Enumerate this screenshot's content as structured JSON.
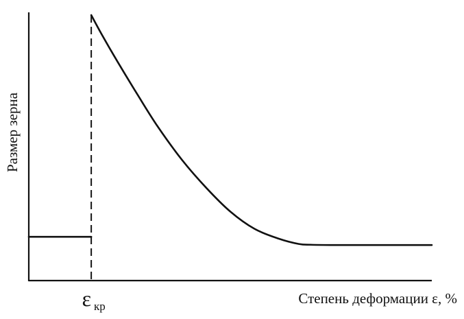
{
  "chart_data": {
    "type": "line",
    "title": "",
    "xlabel": "Степень деформации ε, %",
    "ylabel": "Размер зерна",
    "x_tick_labels": [
      {
        "symbol": "ε",
        "subscript": "кр"
      }
    ],
    "grid": false,
    "legend": "none",
    "xlim": [
      0,
      100
    ],
    "ylim": [
      0,
      100
    ],
    "critical_x": 15.5,
    "series": [
      {
        "segment": "pre-critical",
        "x": [
          0,
          15.5
        ],
        "y": [
          16.5,
          16.5
        ]
      },
      {
        "segment": "post-critical",
        "x": [
          15.5,
          18,
          22,
          27,
          32,
          38,
          44,
          50,
          56,
          62,
          67,
          70,
          75,
          85,
          100
        ],
        "y": [
          100,
          93,
          82.5,
          70,
          58,
          45.5,
          35,
          26,
          19.5,
          15.8,
          13.8,
          13.5,
          13.4,
          13.4,
          13.4
        ]
      }
    ],
    "colors": {
      "line": "#111111",
      "background": "#ffffff"
    }
  }
}
